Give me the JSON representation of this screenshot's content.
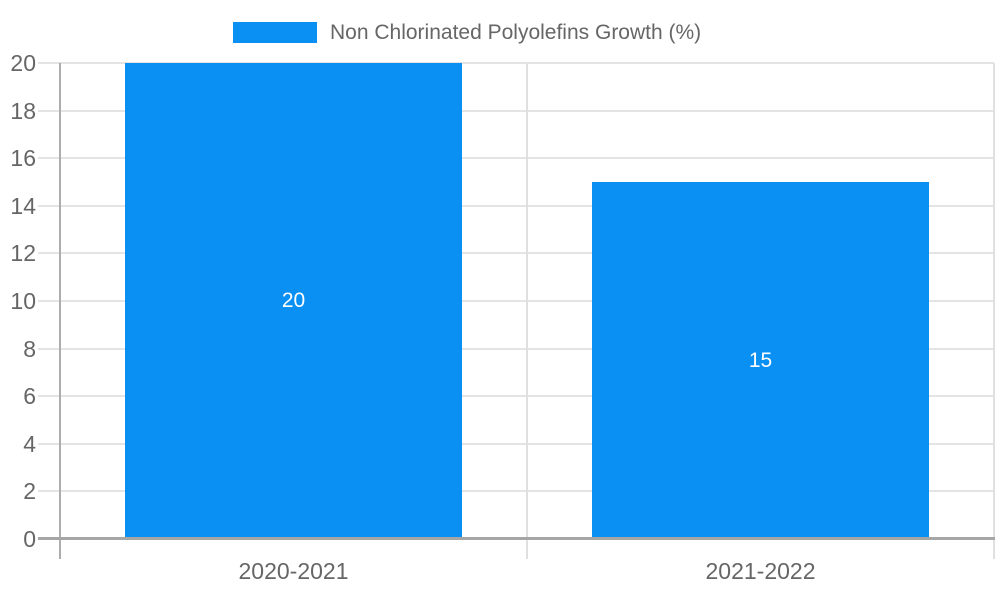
{
  "legend": {
    "label": "Non Chlorinated Polyolefins Growth (%)",
    "swatch_color": "#0a8ff2"
  },
  "chart_data": {
    "type": "bar",
    "title": "",
    "categories": [
      "2020-2021",
      "2021-2022"
    ],
    "series": [
      {
        "name": "Non Chlorinated Polyolefins Growth (%)",
        "values": [
          20,
          15
        ]
      }
    ],
    "value_labels": [
      "20",
      "15"
    ],
    "ylim": [
      0,
      20
    ],
    "ytick_step": 2,
    "yticks": [
      0,
      2,
      4,
      6,
      8,
      10,
      12,
      14,
      16,
      18,
      20
    ],
    "grid": true,
    "legend_position": "top",
    "bar_width_fraction": 0.72,
    "colors": {
      "bar": "#0a8ff2",
      "gridline": "#e4e4e4",
      "axis": "#a6a6a6",
      "separator": "#e0e0e0",
      "tick_text": "#666666",
      "value_text": "#ffffff",
      "background": "#ffffff"
    }
  }
}
